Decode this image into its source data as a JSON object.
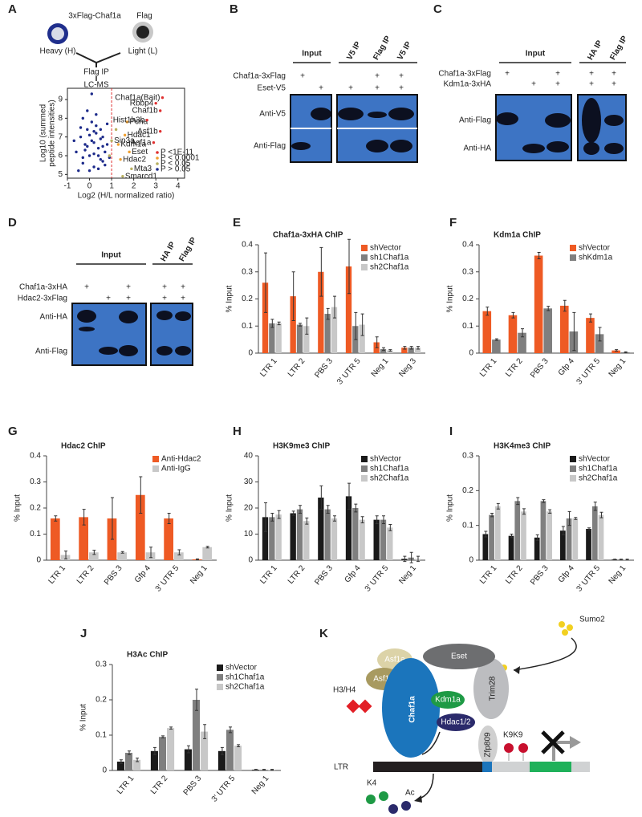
{
  "figure": {
    "panel_labels": [
      "A",
      "B",
      "C",
      "D",
      "E",
      "F",
      "G",
      "H",
      "I",
      "J",
      "K"
    ],
    "a": {
      "top_label": "3xFlag-Chaf1a",
      "flag_label": "Flag",
      "heavy": "Heavy (H)",
      "light": "Light (L)",
      "flag_ip": "Flag IP",
      "lcms": "LC-MS"
    },
    "b": {
      "input": "Input",
      "ip_lanes": [
        "V5 IP",
        "Flag IP",
        "V5 IP"
      ],
      "rows": [
        {
          "label": "Chaf1a-3xFlag",
          "marks": [
            "+",
            null,
            null,
            "+",
            "+"
          ]
        },
        {
          "label": "Eset-V5",
          "marks": [
            null,
            "+",
            "+",
            "+",
            "+"
          ]
        }
      ],
      "antibodies": [
        "Anti-V5",
        "Anti-Flag"
      ]
    },
    "c": {
      "input": "Input",
      "ip_lanes": [
        "HA IP",
        "Flag IP"
      ],
      "rows": [
        {
          "label": "Chaf1a-3xFlag",
          "marks": [
            "+",
            null,
            "+",
            "+",
            "+"
          ]
        },
        {
          "label": "Kdm1a-3xHA",
          "marks": [
            null,
            "+",
            "+",
            "+",
            "+"
          ]
        }
      ],
      "antibodies": [
        "Anti-Flag",
        "Anti-HA"
      ]
    },
    "d": {
      "input": "Input",
      "ip_lanes": [
        "HA IP",
        "Flag IP"
      ],
      "rows": [
        {
          "label": "Chaf1a-3xHA",
          "marks": [
            "+",
            null,
            "+",
            "+",
            "+"
          ]
        },
        {
          "label": "Hdac2-3xFlag",
          "marks": [
            null,
            "+",
            "+",
            "+",
            "+"
          ]
        }
      ],
      "antibodies": [
        "Anti-HA",
        "Anti-Flag"
      ]
    },
    "k": {
      "sumo2": "Sumo2",
      "eset": "Eset",
      "asf1a": "Asf1a",
      "asf1b": "Asf1b",
      "chaf1a": "Chaf1a",
      "kdm1a": "Kdm1a",
      "hdac": "Hdac1/2",
      "trim28": "Trim28",
      "zfp809": "Zfp809",
      "h3h4": "H3/H4",
      "k9": "K9K9",
      "ltr": "LTR",
      "k4": "K4",
      "ac": "Ac"
    }
  },
  "chart_data": [
    {
      "type": "scatter",
      "x_label": "Log2 (H/L normalized ratio)",
      "y_label": [
        "Log10 (summed",
        "peptide intensities)"
      ],
      "xlim": [
        -1,
        4.3
      ],
      "ylim": [
        4.8,
        9.6
      ],
      "xticks": [
        -1,
        0,
        1,
        2,
        3,
        4
      ],
      "yticks": [
        5,
        6,
        7,
        8,
        9
      ],
      "vline": 1,
      "vline_color": "#e03030",
      "legend": "lower right",
      "series": [
        {
          "name": "P <1E-11",
          "color": "#e03030",
          "x": [
            3.3,
            3.0,
            3.2,
            2.6,
            3.2,
            2.9
          ],
          "y": [
            9.1,
            8.8,
            8.4,
            7.9,
            7.3,
            6.7
          ],
          "labels": [
            "Chaf1a(Bait)",
            "Rbbp4",
            "Chaf1b",
            "Hist1h3b",
            "Asf1b",
            "Asf1a"
          ]
        },
        {
          "name": "P < 0.0001",
          "color": "#f0a030",
          "x": [
            1.7,
            1.6,
            1.3,
            1.8,
            1.4
          ],
          "y": [
            7.8,
            7.1,
            6.6,
            6.2,
            5.8
          ],
          "labels": [
            "Pcna",
            "Hdac1",
            "Kdm1a",
            "Eset",
            "Hdac2"
          ]
        },
        {
          "name": "P < 0.05",
          "color": "#b8b060",
          "x": [
            1.0,
            1.9,
            1.5,
            1.2,
            0.9
          ],
          "y": [
            6.8,
            5.3,
            4.9,
            7.4,
            6.0
          ],
          "labels": [
            "Sin3a",
            "Mta3",
            "Smarcd1",
            null,
            null
          ]
        },
        {
          "name": "P > 0.05",
          "color": "#1c2a8a",
          "x": [
            -0.6,
            -0.4,
            -0.3,
            -0.2,
            -0.1,
            0,
            0.1,
            0.2,
            0.3,
            0.4,
            0.5,
            0.6,
            0.7,
            0.8,
            -0.5,
            -0.3,
            -0.1,
            0.1,
            0.3,
            0.5,
            0.7,
            -0.2,
            0,
            0.2,
            0.4,
            0.6,
            -0.4,
            0.1,
            0.3,
            0.8,
            -0.7,
            0.9,
            0,
            0.2,
            -0.3,
            0.5,
            0.6,
            -0.1,
            0.4,
            0.2
          ],
          "y": [
            6.2,
            7.0,
            5.6,
            6.6,
            7.4,
            6.0,
            6.8,
            5.4,
            7.2,
            6.4,
            5.8,
            7.0,
            6.2,
            6.6,
            5.2,
            8.0,
            8.4,
            7.8,
            7.6,
            6.9,
            5.5,
            6.3,
            5.2,
            6.1,
            5.3,
            6.5,
            7.5,
            9.3,
            8.2,
            7.7,
            6.8,
            5.9,
            7.1,
            6.7,
            5.9,
            7.4,
            5.7,
            6.5,
            6.0,
            7.3
          ]
        }
      ]
    },
    {
      "type": "bar",
      "title": "Chaf1a-3xHA ChIP",
      "y_label": "% Input",
      "legend": "upper right",
      "categories": [
        "LTR 1",
        "LTR 2",
        "PBS 3",
        "3' UTR 5",
        "Neg 1",
        "Neg 3"
      ],
      "ylim": [
        0,
        0.4
      ],
      "yticks": [
        0,
        0.1,
        0.2,
        0.3,
        0.4
      ],
      "series": [
        {
          "name": "shVector",
          "color": "#ee5a24",
          "values": [
            0.26,
            0.21,
            0.3,
            0.32,
            0.04,
            0.02
          ],
          "errors": [
            0.11,
            0.09,
            0.09,
            0.1,
            0.02,
            0.005
          ]
        },
        {
          "name": "sh1Chaf1a",
          "color": "#7f7f7f",
          "values": [
            0.11,
            0.105,
            0.145,
            0.1,
            0.015,
            0.02
          ],
          "errors": [
            0.015,
            0.005,
            0.02,
            0.05,
            0.005,
            0.005
          ]
        },
        {
          "name": "sh2Chaf1a",
          "color": "#c8c8c8",
          "values": [
            0.11,
            0.1,
            0.17,
            0.105,
            0.01,
            0.02
          ],
          "errors": [
            0.005,
            0.03,
            0.04,
            0.04,
            0.003,
            0.005
          ]
        }
      ]
    },
    {
      "type": "bar",
      "title": "Kdm1a ChIP",
      "y_label": "% Input",
      "legend": "upper right",
      "categories": [
        "LTR 1",
        "LTR 2",
        "PBS 3",
        "Gfp 4",
        "3' UTR 5",
        "Neg 1"
      ],
      "ylim": [
        0,
        0.4
      ],
      "yticks": [
        0,
        0.1,
        0.2,
        0.3,
        0.4
      ],
      "series": [
        {
          "name": "shVector",
          "color": "#ee5a24",
          "values": [
            0.155,
            0.14,
            0.36,
            0.175,
            0.13,
            0.01
          ],
          "errors": [
            0.015,
            0.01,
            0.012,
            0.02,
            0.015,
            0.003
          ]
        },
        {
          "name": "shKdm1a",
          "color": "#7f7f7f",
          "values": [
            0.05,
            0.075,
            0.165,
            0.08,
            0.07,
            0.003
          ],
          "errors": [
            0.003,
            0.015,
            0.008,
            0.07,
            0.025,
            0.002
          ]
        }
      ]
    },
    {
      "type": "bar",
      "title": "Hdac2 ChIP",
      "y_label": "% Input",
      "legend": "upper right",
      "categories": [
        "LTR 1",
        "LTR 2",
        "PBS 3",
        "Gfp 4",
        "3' UTR 5",
        "Neg 1"
      ],
      "ylim": [
        0,
        0.4
      ],
      "yticks": [
        0,
        0.1,
        0.2,
        0.3,
        0.4
      ],
      "series": [
        {
          "name": "Anti-Hdac2",
          "color": "#ee5a24",
          "values": [
            0.16,
            0.165,
            0.16,
            0.25,
            0.16,
            0.003
          ],
          "errors": [
            0.01,
            0.03,
            0.08,
            0.07,
            0.02,
            0.002
          ]
        },
        {
          "name": "Anti-IgG",
          "color": "#c8c8c8",
          "values": [
            0.02,
            0.03,
            0.03,
            0.03,
            0.03,
            0.05
          ],
          "errors": [
            0.015,
            0.008,
            0.003,
            0.02,
            0.01,
            0.003
          ]
        }
      ]
    },
    {
      "type": "bar",
      "title": "H3K9me3 ChIP",
      "y_label": "% Input",
      "legend": "upper right",
      "categories": [
        "LTR 1",
        "LTR 2",
        "PBS 3",
        "Gfp 4",
        "3' UTR 5",
        "Neg 1"
      ],
      "ylim": [
        0,
        40
      ],
      "yticks": [
        0,
        10,
        20,
        30,
        40
      ],
      "series": [
        {
          "name": "shVector",
          "color": "#1a1a1a",
          "values": [
            16.5,
            18,
            24,
            24.5,
            15.5,
            0.5
          ],
          "errors": [
            5.5,
            0.8,
            4.5,
            5,
            1.5,
            1
          ]
        },
        {
          "name": "sh1Chaf1a",
          "color": "#7f7f7f",
          "values": [
            16.5,
            19.5,
            19.5,
            20,
            15.5,
            1
          ],
          "errors": [
            1.5,
            1.5,
            1.5,
            1.5,
            1.5,
            2
          ]
        },
        {
          "name": "sh2Chaf1a",
          "color": "#c8c8c8",
          "values": [
            17.5,
            15,
            16,
            15.5,
            12.5,
            0.5
          ],
          "errors": [
            1.5,
            1.2,
            1.0,
            1.2,
            1.2,
            1
          ]
        }
      ]
    },
    {
      "type": "bar",
      "title": "H3K4me3 ChIP",
      "y_label": "% Input",
      "legend": "upper right",
      "categories": [
        "LTR 1",
        "LTR 2",
        "PBS 3",
        "Gfp 4",
        "3' UTR 5",
        "Neg 1"
      ],
      "ylim": [
        0,
        0.3
      ],
      "yticks": [
        0,
        0.1,
        0.2,
        0.3
      ],
      "series": [
        {
          "name": "shVector",
          "color": "#1a1a1a",
          "values": [
            0.075,
            0.07,
            0.065,
            0.085,
            0.09,
            0.002
          ],
          "errors": [
            0.008,
            0.005,
            0.008,
            0.012,
            0.003,
            0.001
          ]
        },
        {
          "name": "sh1Chaf1a",
          "color": "#7f7f7f",
          "values": [
            0.13,
            0.17,
            0.17,
            0.12,
            0.155,
            0.002
          ],
          "errors": [
            0.005,
            0.01,
            0.004,
            0.02,
            0.012,
            0.001
          ]
        },
        {
          "name": "sh2Chaf1a",
          "color": "#c8c8c8",
          "values": [
            0.155,
            0.14,
            0.14,
            0.12,
            0.13,
            0.002
          ],
          "errors": [
            0.008,
            0.008,
            0.005,
            0.003,
            0.008,
            0.001
          ]
        }
      ]
    },
    {
      "type": "bar",
      "title": "H3Ac ChIP",
      "y_label": "% Input",
      "legend": "upper right",
      "categories": [
        "LTR 1",
        "LTR 2",
        "PBS 3",
        "3' UTR 5",
        "Neg 1"
      ],
      "ylim": [
        0,
        0.3
      ],
      "yticks": [
        0,
        0.1,
        0.2,
        0.3
      ],
      "series": [
        {
          "name": "shVector",
          "color": "#1a1a1a",
          "values": [
            0.025,
            0.055,
            0.06,
            0.055,
            0.002
          ],
          "errors": [
            0.005,
            0.01,
            0.01,
            0.01,
            0.001
          ]
        },
        {
          "name": "sh1Chaf1a",
          "color": "#7f7f7f",
          "values": [
            0.05,
            0.095,
            0.2,
            0.115,
            0.002
          ],
          "errors": [
            0.005,
            0.003,
            0.03,
            0.008,
            0.001
          ]
        },
        {
          "name": "sh2Chaf1a",
          "color": "#c8c8c8",
          "values": [
            0.03,
            0.12,
            0.11,
            0.07,
            0.002
          ],
          "errors": [
            0.005,
            0.003,
            0.02,
            0.003,
            0.001
          ]
        }
      ]
    }
  ]
}
